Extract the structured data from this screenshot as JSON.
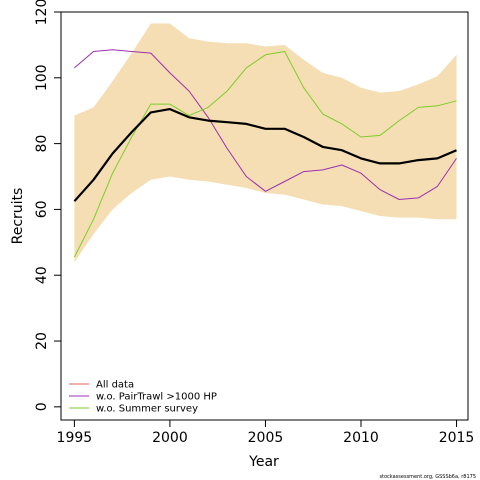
{
  "chart_data": {
    "type": "line",
    "title": "",
    "xlabel": "Year",
    "ylabel": "Recruits",
    "xlim": [
      1994.3,
      2015.6
    ],
    "ylim": [
      -4,
      120
    ],
    "xticks": [
      1995,
      2000,
      2005,
      2010,
      2015
    ],
    "xtick_labels": [
      "1995",
      "2000",
      "2005",
      "2010",
      "2015"
    ],
    "yticks": [
      0,
      20,
      40,
      60,
      80,
      100,
      120
    ],
    "ytick_labels": [
      "0",
      "20",
      "40",
      "60",
      "80",
      "100",
      "120"
    ],
    "grid": false,
    "legend_position": "bottom-left",
    "x": [
      1995,
      1996,
      1997,
      1998,
      1999,
      2000,
      2001,
      2002,
      2003,
      2004,
      2005,
      2006,
      2007,
      2008,
      2009,
      2010,
      2011,
      2012,
      2013,
      2014,
      2015
    ],
    "band": {
      "color": "#f5deb3",
      "upper": [
        88.5,
        91,
        99,
        107.5,
        116.5,
        116.5,
        112,
        111,
        110.5,
        110.5,
        109.5,
        110,
        105.5,
        101.5,
        100,
        97,
        95.5,
        96,
        98,
        100.5,
        107
      ],
      "lower": [
        44,
        52.5,
        60,
        65,
        69,
        70,
        69,
        68.5,
        67.5,
        66.5,
        65,
        64.5,
        63,
        61.5,
        61,
        59.5,
        58,
        57.5,
        57.5,
        57,
        57
      ]
    },
    "series": [
      {
        "name": "All data",
        "color": "#000000",
        "legend_color": "#e86060",
        "width": 2.2,
        "values": [
          62.5,
          69,
          77,
          83.5,
          89.5,
          90.5,
          88,
          87,
          86.5,
          86,
          84.5,
          84.5,
          82,
          79,
          78,
          75.5,
          74,
          74,
          75,
          75.5,
          78
        ]
      },
      {
        "name": "w.o. PairTrawl >1000 HP",
        "color": "#9b30b0",
        "legend_color": "#9b30b0",
        "width": 1,
        "values": [
          103,
          108,
          108.5,
          108,
          107.5,
          101.5,
          96,
          88,
          78.5,
          70,
          65.5,
          68.5,
          71.5,
          72,
          73.5,
          71,
          66,
          63,
          63.5,
          67,
          75.5
        ]
      },
      {
        "name": "w.o. Summer survey",
        "color": "#7ccd28",
        "legend_color": "#7ccd28",
        "width": 1,
        "values": [
          45.5,
          57,
          71,
          82,
          92,
          92,
          88.5,
          91,
          96,
          103,
          107,
          108,
          97,
          89,
          86,
          82,
          82.5,
          87,
          91,
          91.5,
          93
        ]
      }
    ]
  },
  "footer": "stockassessment.org, GSSSb6a, r8175"
}
